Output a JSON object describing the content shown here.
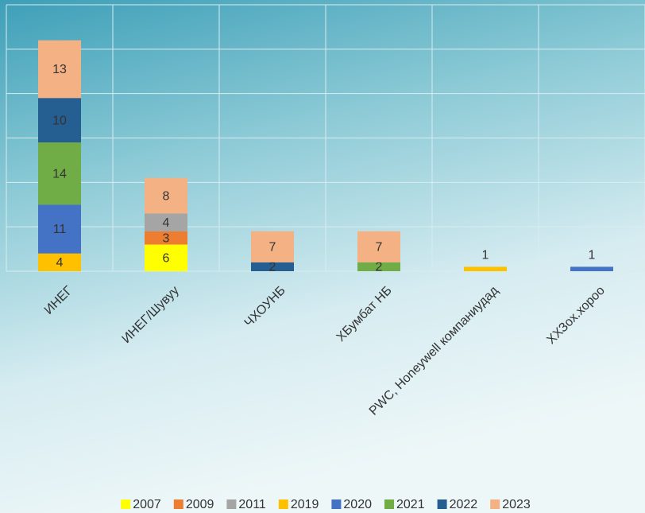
{
  "chart_data": {
    "type": "stacked-bar",
    "categories": [
      "ИНЕГ",
      "ИНЕГ/Шувуу",
      "ЧХОУНБ",
      "ХБумбат НБ",
      "PWC, Honeywell компаниудад",
      "ХХЗох.хороо"
    ],
    "series": [
      {
        "name": "2007",
        "color": "#ffff00",
        "values": [
          null,
          6,
          null,
          null,
          null,
          null
        ]
      },
      {
        "name": "2009",
        "color": "#ed7d31",
        "values": [
          null,
          3,
          null,
          null,
          null,
          null
        ]
      },
      {
        "name": "2011",
        "color": "#a5a5a5",
        "values": [
          null,
          4,
          null,
          null,
          null,
          null
        ]
      },
      {
        "name": "2019",
        "color": "#ffc000",
        "values": [
          4,
          null,
          null,
          null,
          1,
          null
        ]
      },
      {
        "name": "2020",
        "color": "#4472c4",
        "values": [
          11,
          null,
          null,
          null,
          null,
          1
        ]
      },
      {
        "name": "2021",
        "color": "#70ad47",
        "values": [
          14,
          null,
          null,
          2,
          null,
          null
        ]
      },
      {
        "name": "2022",
        "color": "#255e91",
        "values": [
          10,
          null,
          2,
          null,
          null,
          null
        ]
      },
      {
        "name": "2023",
        "color": "#f4b183",
        "values": [
          13,
          8,
          7,
          7,
          null,
          null
        ]
      }
    ],
    "ylim": [
      0,
      60
    ],
    "yticks": [
      0,
      10,
      20,
      30,
      40,
      50,
      60
    ],
    "grid": true,
    "legend": "bottom"
  }
}
